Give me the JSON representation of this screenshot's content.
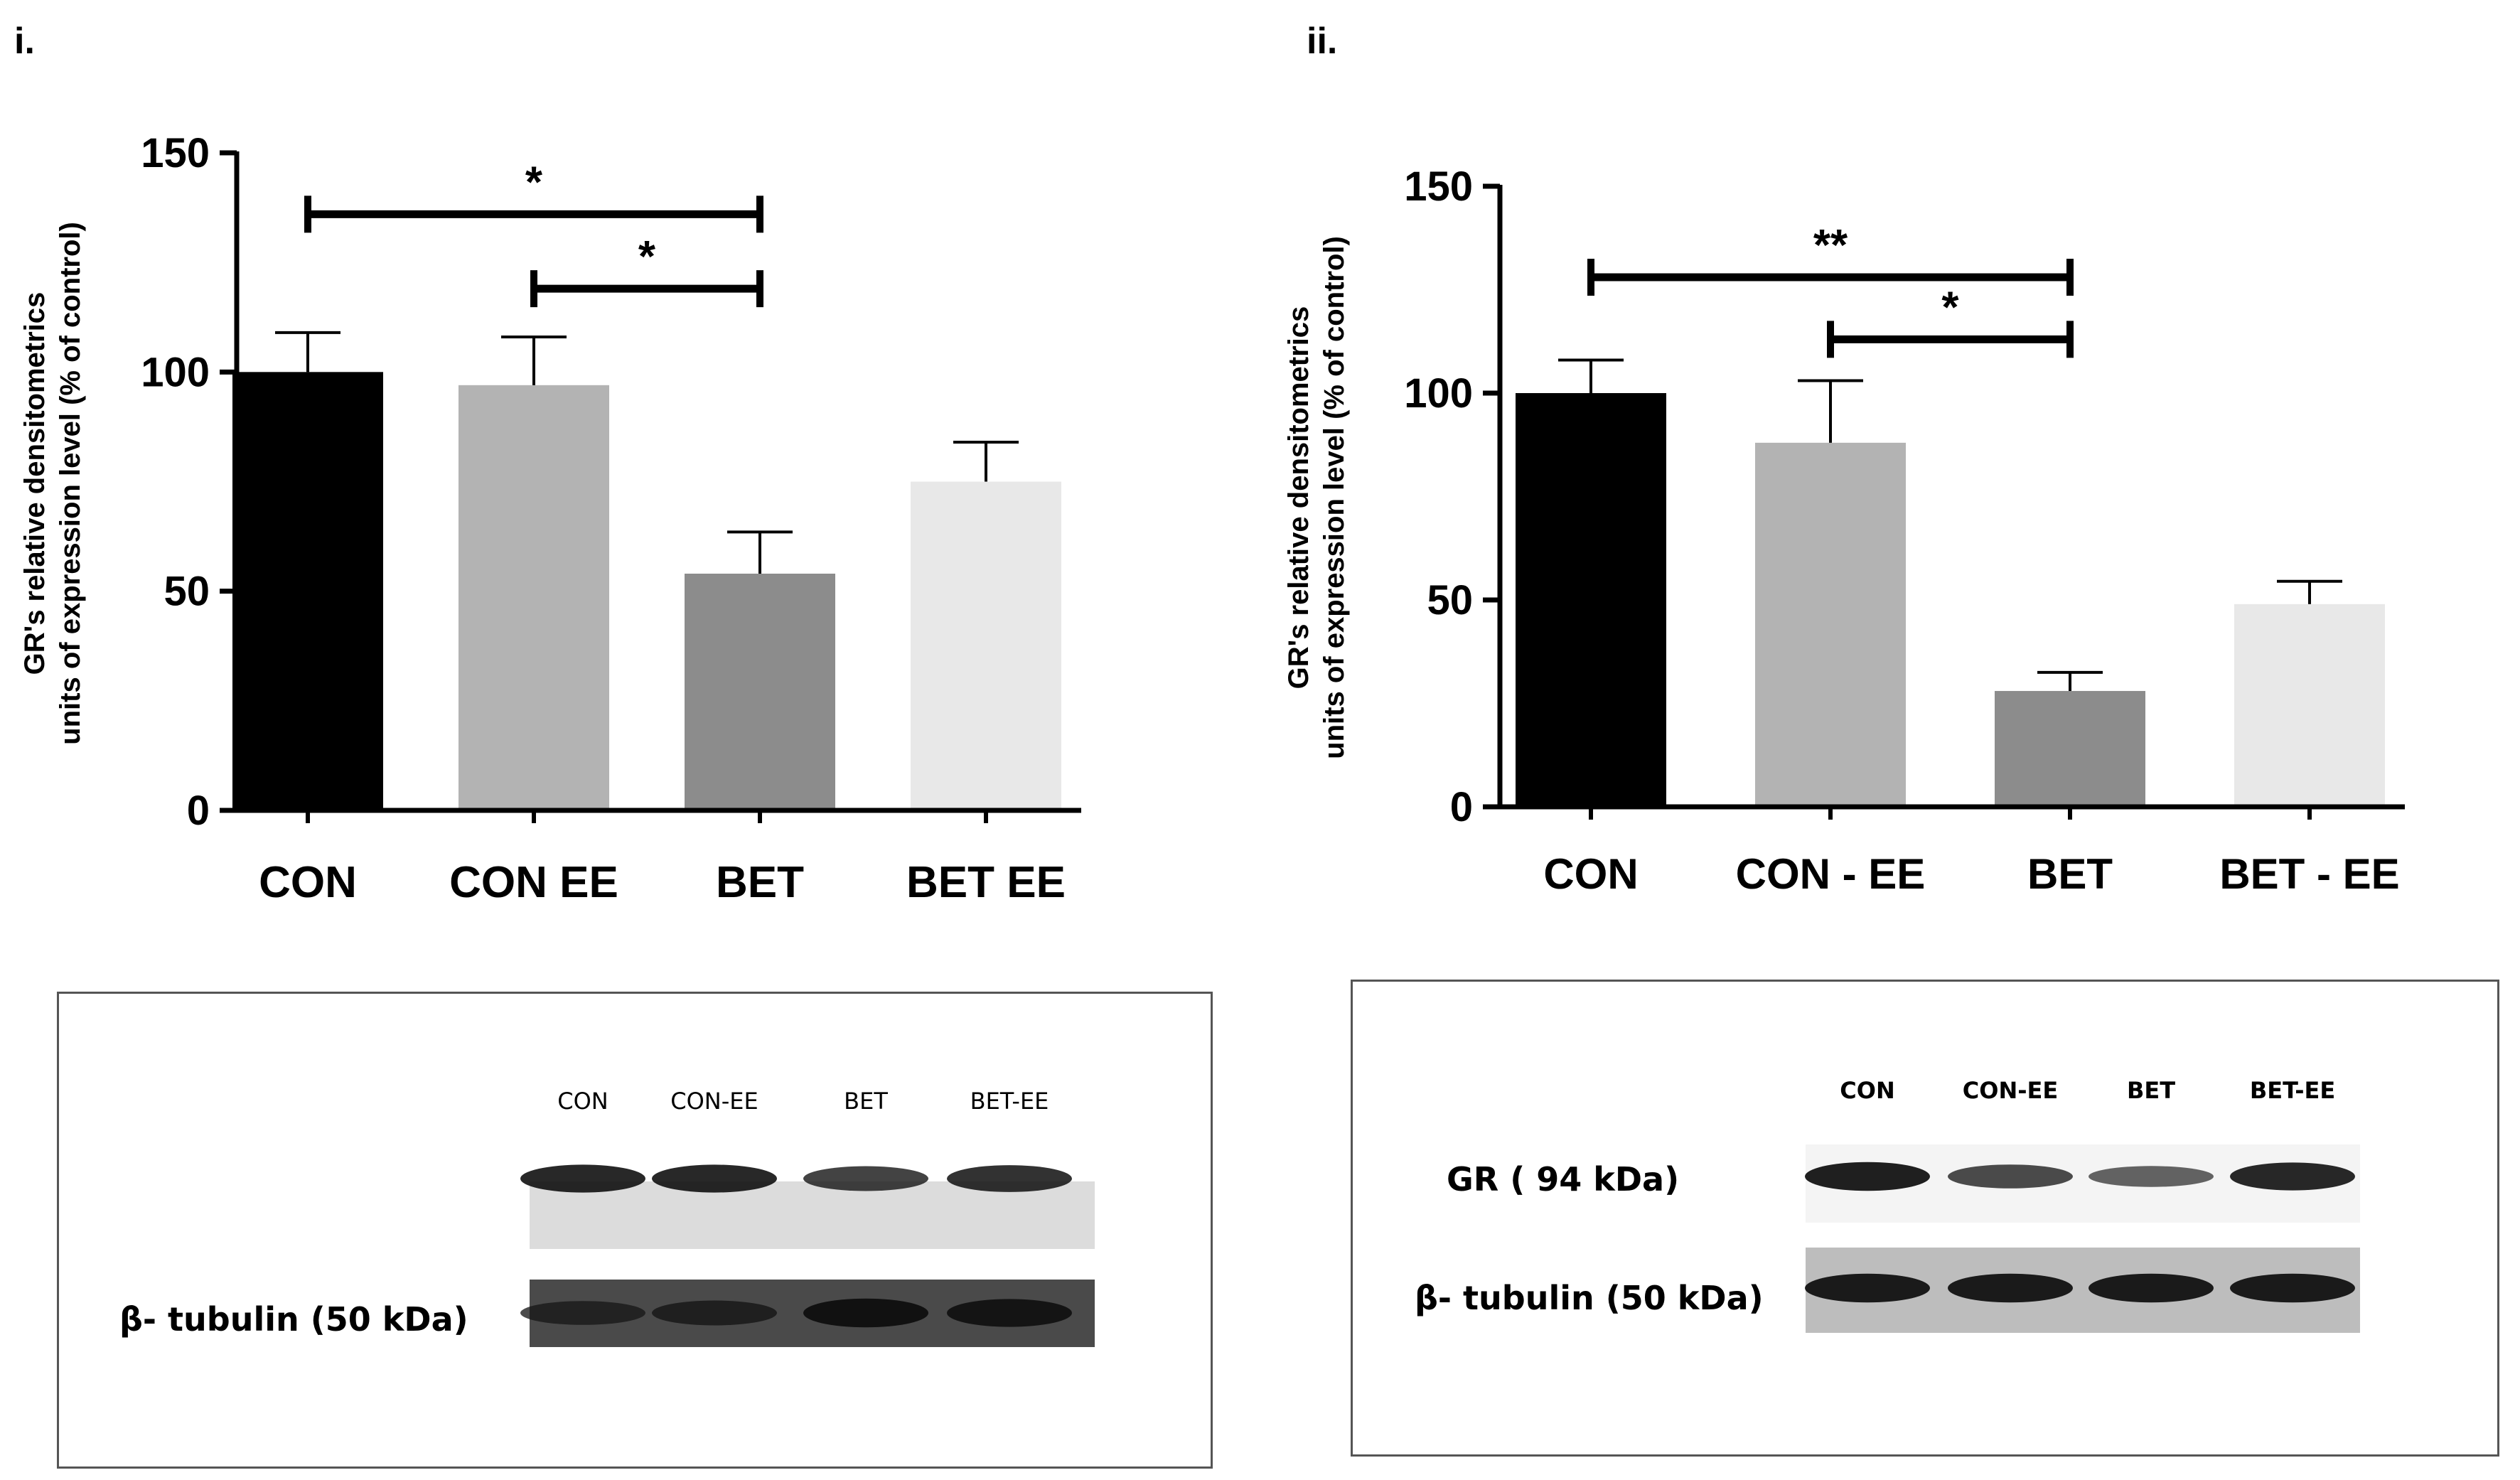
{
  "panels": [
    {
      "label": "i.",
      "chart_data": {
        "type": "bar",
        "ylabel_lines": [
          "GR's relative densitometrics",
          "units of expression level (% of control)"
        ],
        "categories": [
          "CON",
          "CON EE",
          "BET",
          "BET EE"
        ],
        "values": [
          100,
          97,
          54,
          75
        ],
        "errors": [
          9,
          11,
          9.5,
          9
        ],
        "colors": [
          "#000000",
          "#b3b3b3",
          "#8c8c8c",
          "#e8e8e8"
        ],
        "ylim": [
          0,
          150
        ],
        "yticks": [
          0,
          50,
          100,
          150
        ],
        "ytick_labels": [
          "0",
          "50",
          "100",
          "150"
        ],
        "grid": false,
        "significance": [
          {
            "from": 0,
            "to": 2,
            "label": "*",
            "y": 136
          },
          {
            "from": 1,
            "to": 2,
            "label": "*",
            "y": 119
          }
        ]
      },
      "blot": {
        "lane_labels": [
          "CON",
          "CON-EE",
          "BET",
          "BET-EE"
        ],
        "rows": [
          {
            "label": "",
            "band_intensity": [
              0.9,
              0.9,
              0.75,
              0.85
            ]
          },
          {
            "label": "β- tubulin  (50 kDa)",
            "band_intensity": [
              0.7,
              0.75,
              0.95,
              0.9
            ]
          }
        ]
      }
    },
    {
      "label": "ii.",
      "chart_data": {
        "type": "bar",
        "ylabel_lines": [
          "GR's relative densitometrics",
          "units of expression level (% of control)"
        ],
        "categories": [
          "CON",
          "CON - EE",
          "BET",
          "BET - EE"
        ],
        "values": [
          100,
          88,
          28,
          49
        ],
        "errors": [
          8,
          15,
          4.5,
          5.5
        ],
        "colors": [
          "#000000",
          "#b3b3b3",
          "#8c8c8c",
          "#e8e8e8"
        ],
        "ylim": [
          0,
          150
        ],
        "yticks": [
          0,
          50,
          100,
          150
        ],
        "ytick_labels": [
          "0",
          "50",
          "100",
          "150"
        ],
        "grid": false,
        "significance": [
          {
            "from": 0,
            "to": 2,
            "label": "**",
            "y": 128
          },
          {
            "from": 1,
            "to": 2,
            "label": "*",
            "y": 113
          }
        ]
      },
      "blot": {
        "lane_labels": [
          "CON",
          "CON-EE",
          "BET",
          "BET-EE"
        ],
        "rows": [
          {
            "label": "GR  ( 94 kDa)",
            "band_intensity": [
              0.95,
              0.7,
              0.55,
              0.9
            ]
          },
          {
            "label": "β- tubulin  (50 kDa)",
            "band_intensity": [
              0.95,
              0.95,
              0.95,
              0.95
            ]
          }
        ]
      }
    }
  ]
}
